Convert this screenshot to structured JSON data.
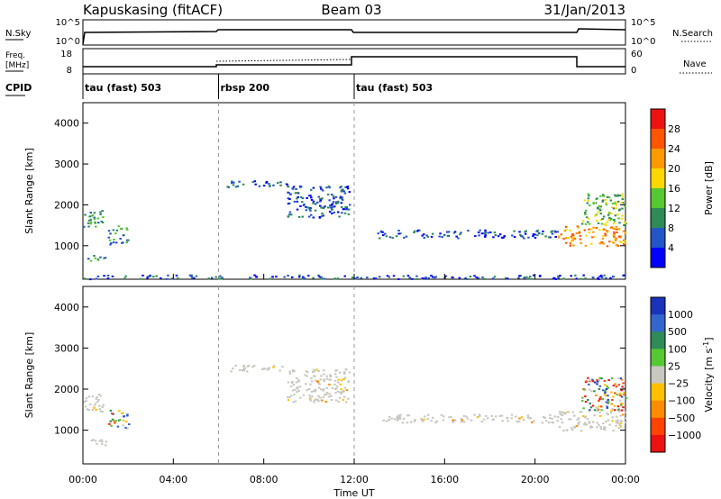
{
  "header": {
    "station": "Kapuskasing (fitACF)",
    "beam": "Beam 03",
    "date": "31/Jan/2013"
  },
  "noise_panel": {
    "left_label": "N.Sky",
    "left_ticks": [
      "10^5",
      "10^0"
    ],
    "right_label": "N.Search",
    "right_ticks": [
      "10^5",
      "10^0"
    ]
  },
  "freq_panel": {
    "left_label_line1": "Freq.",
    "left_label_line2": "[MHz]",
    "left_ticks": [
      "18",
      "8"
    ],
    "right_label": "Nave",
    "right_ticks": [
      "60",
      "0"
    ]
  },
  "cpid_panel": {
    "label": "CPID",
    "segments": [
      {
        "name": "tau (fast) 503",
        "start_hour": 0,
        "end_hour": 6
      },
      {
        "name": "rbsp 200",
        "start_hour": 6,
        "end_hour": 12
      },
      {
        "name": "tau (fast) 503",
        "start_hour": 12,
        "end_hour": 24
      }
    ]
  },
  "chart_data": [
    {
      "type": "heatmap",
      "title": "Power",
      "xlabel": "Time UT",
      "ylabel": "Slant Range [km]",
      "x_range_hours": [
        0,
        24
      ],
      "x_ticks": [
        "00:00",
        "04:00",
        "08:00",
        "12:00",
        "16:00",
        "20:00",
        "00:00"
      ],
      "ylim": [
        180,
        4500
      ],
      "y_ticks": [
        1000,
        2000,
        3000,
        4000
      ],
      "colorbar": {
        "label": "Power [dB]",
        "ticks": [
          "4",
          "8",
          "12",
          "16",
          "20",
          "24",
          "28"
        ],
        "colors": [
          "#0000ff",
          "#2255c8",
          "#2e8b57",
          "#55c832",
          "#ffd700",
          "#ff9900",
          "#ff5500",
          "#ee1111"
        ]
      },
      "echo_regions": [
        {
          "t0": 0.0,
          "t1": 0.9,
          "r0": 1450,
          "r1": 1900,
          "level": 2
        },
        {
          "t0": 1.1,
          "t1": 2.0,
          "r0": 1050,
          "r1": 1500,
          "level": 2
        },
        {
          "t0": 0.0,
          "t1": 1.0,
          "r0": 650,
          "r1": 800,
          "level": 2
        },
        {
          "t0": 0.0,
          "t1": 24.0,
          "r0": 200,
          "r1": 300,
          "level": 1
        },
        {
          "t0": 6.3,
          "t1": 9.0,
          "r0": 2450,
          "r1": 2600,
          "level": 1
        },
        {
          "t0": 9.0,
          "t1": 11.8,
          "r0": 1700,
          "r1": 2500,
          "level": 1
        },
        {
          "t0": 13.0,
          "t1": 21.0,
          "r0": 1200,
          "r1": 1400,
          "level": 1
        },
        {
          "t0": 21.0,
          "t1": 24.0,
          "r0": 1000,
          "r1": 1500,
          "level": 5
        },
        {
          "t0": 22.0,
          "t1": 24.0,
          "r0": 1500,
          "r1": 2300,
          "level": 3
        }
      ]
    },
    {
      "type": "heatmap",
      "title": "Velocity",
      "xlabel": "Time UT",
      "ylabel": "Slant Range [km]",
      "x_range_hours": [
        0,
        24
      ],
      "x_ticks": [
        "00:00",
        "04:00",
        "08:00",
        "12:00",
        "16:00",
        "20:00",
        "00:00"
      ],
      "ylim": [
        180,
        4500
      ],
      "y_ticks": [
        1000,
        2000,
        3000,
        4000
      ],
      "colorbar": {
        "label": "Velocity [m s^-1]",
        "ticks": [
          "1000",
          "500",
          "100",
          "25",
          "−25",
          "−100",
          "−500",
          "−1000"
        ],
        "colors": [
          "#1a33bb",
          "#3366cc",
          "#2e8b57",
          "#55c832",
          "#c8c8c0",
          "#ffc000",
          "#ff8c00",
          "#ff4400",
          "#ee1111"
        ]
      },
      "echo_regions": [
        {
          "t0": 0.0,
          "t1": 0.9,
          "r0": 1450,
          "r1": 1900,
          "level": "ground"
        },
        {
          "t0": 1.1,
          "t1": 2.0,
          "r0": 1050,
          "r1": 1500,
          "level": "mixed"
        },
        {
          "t0": 0.0,
          "t1": 1.0,
          "r0": 650,
          "r1": 800,
          "level": "ground"
        },
        {
          "t0": 6.3,
          "t1": 9.0,
          "r0": 2450,
          "r1": 2600,
          "level": "ground"
        },
        {
          "t0": 9.0,
          "t1": 11.8,
          "r0": 1700,
          "r1": 2500,
          "level": "ground"
        },
        {
          "t0": 13.0,
          "t1": 21.0,
          "r0": 1200,
          "r1": 1400,
          "level": "ground"
        },
        {
          "t0": 21.0,
          "t1": 24.0,
          "r0": 1000,
          "r1": 1500,
          "level": "ground"
        },
        {
          "t0": 22.0,
          "t1": 24.0,
          "r0": 1500,
          "r1": 2300,
          "level": "mixed"
        }
      ]
    }
  ]
}
